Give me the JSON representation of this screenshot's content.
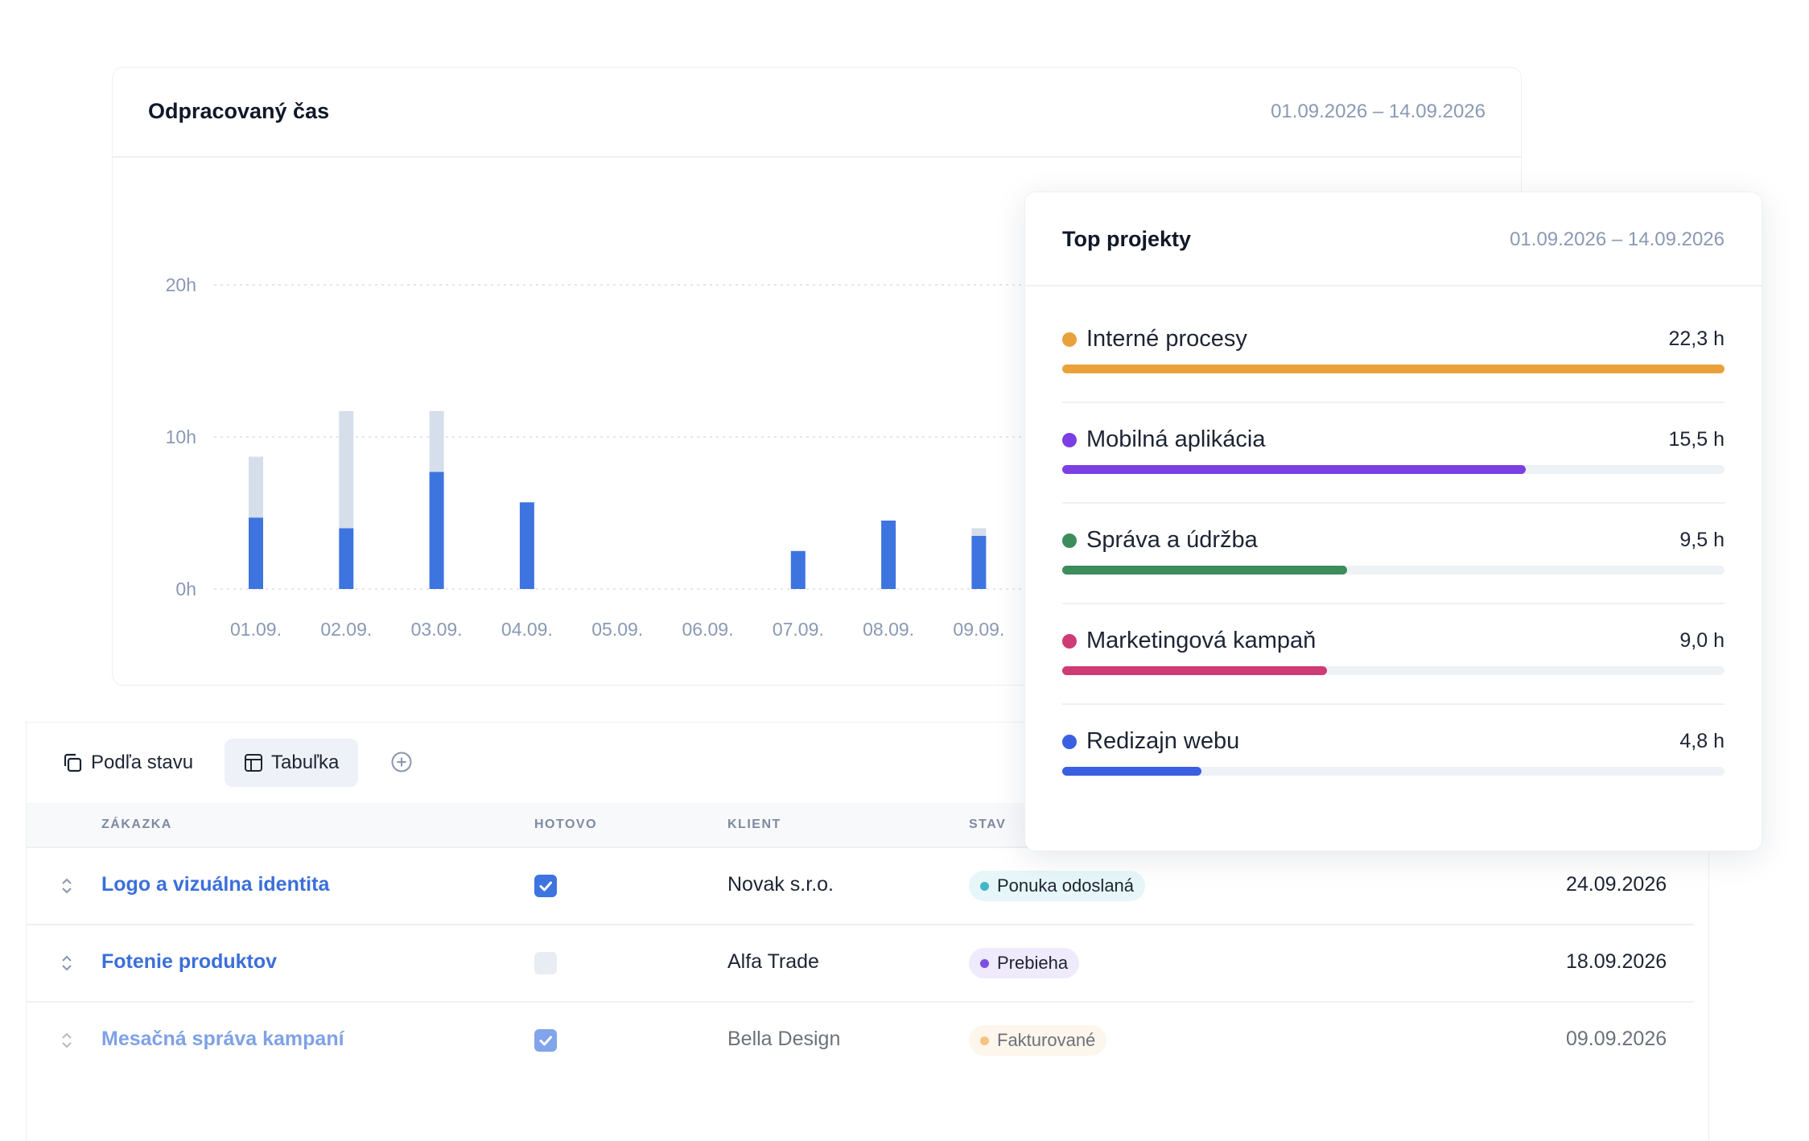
{
  "chart_card": {
    "title": "Odpracovaný čas",
    "range": "01.09.2026 – 14.09.2026"
  },
  "chart_data": {
    "type": "bar",
    "stacked": true,
    "title": "Odpracovaný čas",
    "categories": [
      "01.09.",
      "02.09.",
      "03.09.",
      "04.09.",
      "05.09.",
      "06.09.",
      "07.09.",
      "08.09.",
      "09.09."
    ],
    "series": [
      {
        "values": [
          4.7,
          4.0,
          7.7,
          5.7,
          0,
          0,
          2.5,
          4.5,
          3.5
        ],
        "color": "#3e74df"
      },
      {
        "values": [
          4.0,
          7.7,
          4.0,
          0,
          0,
          0,
          0,
          0,
          0.5
        ],
        "color": "#d5deea"
      }
    ],
    "y_ticks": [
      "0h",
      "10h",
      "20h"
    ],
    "ylim": [
      0,
      20
    ],
    "grid": true
  },
  "top_card": {
    "title": "Top projekty",
    "range": "01.09.2026 – 14.09.2026",
    "projects": [
      {
        "name": "Interné procesy",
        "value": "22,3 h",
        "fraction": 1.0,
        "color": "#e9a23b"
      },
      {
        "name": "Mobilná aplikácia",
        "value": "15,5 h",
        "fraction": 0.7,
        "color": "#7b3fe4"
      },
      {
        "name": "Správa a údržba",
        "value": "9,5 h",
        "fraction": 0.43,
        "color": "#3d8c5c"
      },
      {
        "name": "Marketingová kampaň",
        "value": "9,0 h",
        "fraction": 0.4,
        "color": "#cf3b74"
      },
      {
        "name": "Redizajn webu",
        "value": "4,8 h",
        "fraction": 0.21,
        "color": "#3a5fe0"
      }
    ]
  },
  "table_card": {
    "views": {
      "by_status": "Podľa stavu",
      "table": "Tabuľka"
    },
    "columns": {
      "order": "ZÁKAZKA",
      "done": "HOTOVO",
      "client": "KLIENT",
      "status": "STAV"
    },
    "rows": [
      {
        "name": "Logo a vizuálna identita",
        "done": true,
        "client": "Novak s.r.o.",
        "status": "Ponuka odoslaná",
        "status_color": "#42b6c9",
        "status_bg": "#e7f6f8",
        "date": "24.09.2026"
      },
      {
        "name": "Fotenie produktov",
        "done": false,
        "client": "Alfa Trade",
        "status": "Prebieha",
        "status_color": "#7b4fe0",
        "status_bg": "#efeafc",
        "date": "18.09.2026"
      },
      {
        "name": "Mesačná správa kampaní",
        "done": true,
        "client": "Bella Design",
        "status": "Fakturované",
        "status_color": "#f0a63c",
        "status_bg": "#fdf2e2",
        "date": "09.09.2026"
      }
    ]
  }
}
